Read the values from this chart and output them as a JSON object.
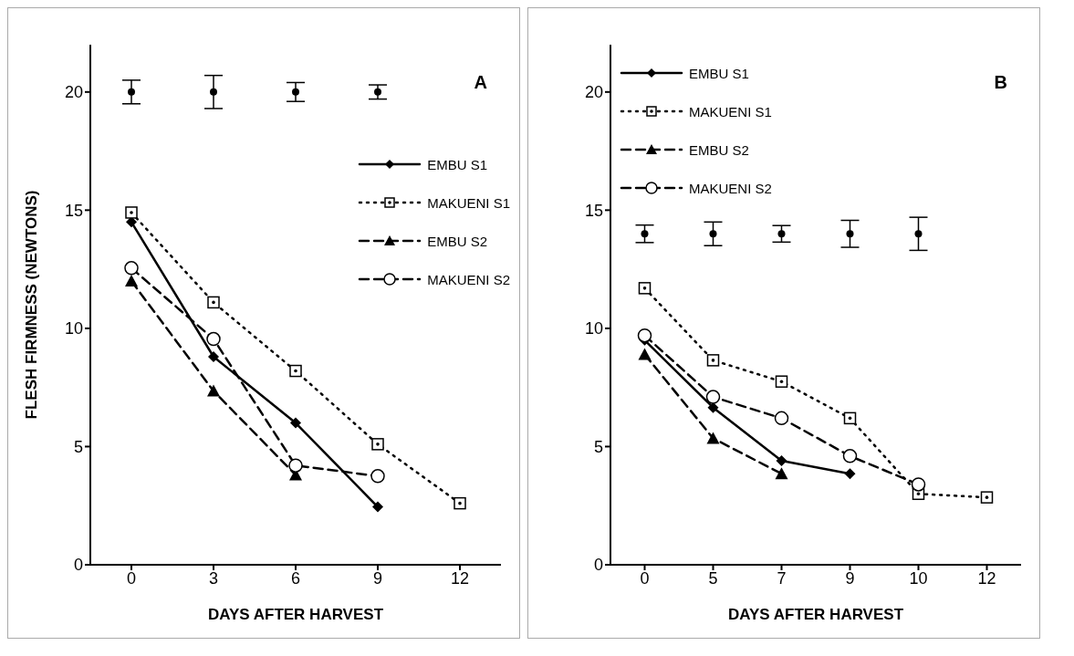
{
  "chart_data": [
    {
      "type": "line",
      "xlabel": "DAYS AFTER HARVEST",
      "ylabel": "FLESH FIRMNESS (NEWTONS)",
      "annotations": [
        "A"
      ],
      "categories": [
        "0",
        "3",
        "6",
        "9",
        "12"
      ],
      "ylim": [
        0,
        22
      ],
      "yticks": [
        0,
        5,
        10,
        15,
        20
      ],
      "grid": false,
      "legend": "right",
      "series": [
        {
          "name": "EMBU S1",
          "color": "#000000",
          "marker": "diamond",
          "line_style": "solid",
          "values": [
            14.5,
            8.8,
            6.0,
            2.45,
            null
          ]
        },
        {
          "name": "MAKUENI S1",
          "color": "#000000",
          "marker": "square",
          "line_style": "dotted",
          "values": [
            14.9,
            11.1,
            8.2,
            5.1,
            2.6
          ]
        },
        {
          "name": "EMBU S2",
          "color": "#000000",
          "marker": "triangle",
          "line_style": "dashed",
          "values": [
            12.0,
            7.35,
            3.8,
            null,
            null
          ]
        },
        {
          "name": "MAKUENI S2",
          "color": "#000000",
          "marker": "circle",
          "line_style": "dashed",
          "values": [
            12.55,
            9.55,
            4.2,
            3.75,
            null
          ]
        },
        {
          "type": "scatter",
          "color": "#000000",
          "marker": "circle",
          "values": [
            20,
            20,
            20,
            20,
            null
          ],
          "errors": [
            0.5,
            0.7,
            0.4,
            0.3,
            null
          ]
        }
      ]
    },
    {
      "type": "line",
      "xlabel": "DAYS AFTER HARVEST",
      "annotations": [
        "B"
      ],
      "categories": [
        "0",
        "5",
        "7",
        "9",
        "10",
        "12"
      ],
      "ylim": [
        0,
        22
      ],
      "yticks": [
        0,
        5,
        10,
        15,
        20
      ],
      "grid": false,
      "legend": "top left",
      "series": [
        {
          "name": "EMBU S1",
          "color": "#000000",
          "marker": "diamond",
          "line_style": "solid",
          "values": [
            9.5,
            6.65,
            4.4,
            3.85,
            null,
            null
          ]
        },
        {
          "name": "MAKUENI S1",
          "color": "#000000",
          "marker": "square",
          "line_style": "dotted",
          "values": [
            11.7,
            8.65,
            7.75,
            6.2,
            3.0,
            2.85
          ]
        },
        {
          "name": "EMBU S2",
          "color": "#000000",
          "marker": "triangle",
          "line_style": "dashed",
          "values": [
            8.9,
            5.35,
            3.85,
            null,
            null,
            null
          ]
        },
        {
          "name": "MAKUENI S2",
          "color": "#000000",
          "marker": "circle",
          "line_style": "dashed",
          "values": [
            9.7,
            7.1,
            6.2,
            4.6,
            3.4,
            null
          ]
        },
        {
          "type": "scatter",
          "color": "#000000",
          "marker": "circle",
          "values": [
            14,
            14,
            14,
            14,
            14,
            null
          ],
          "errors": [
            0.37,
            0.5,
            0.35,
            0.57,
            0.7,
            null
          ]
        }
      ]
    }
  ]
}
